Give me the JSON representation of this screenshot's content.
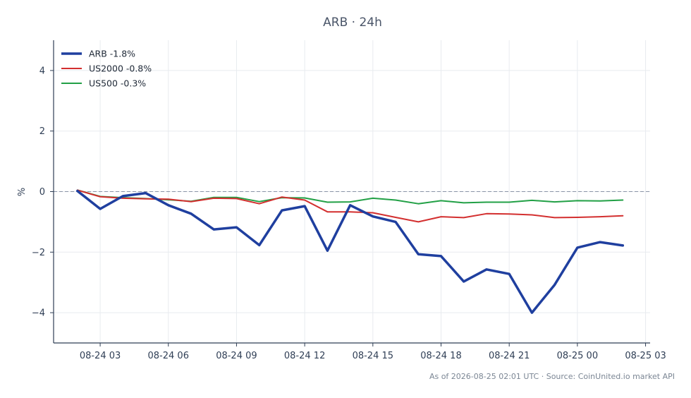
{
  "chart_data": {
    "type": "line",
    "title": "ARB · 24h",
    "xlabel": "",
    "ylabel": "%",
    "xlim": [
      0.95,
      27.2
    ],
    "ylim": [
      -5,
      5
    ],
    "x_ticks": [
      {
        "x": 3,
        "label": "08-24 03"
      },
      {
        "x": 6,
        "label": "08-24 06"
      },
      {
        "x": 9,
        "label": "08-24 09"
      },
      {
        "x": 12,
        "label": "08-24 12"
      },
      {
        "x": 15,
        "label": "08-24 15"
      },
      {
        "x": 18,
        "label": "08-24 18"
      },
      {
        "x": 21,
        "label": "08-24 21"
      },
      {
        "x": 24,
        "label": "08-25 00"
      },
      {
        "x": 27,
        "label": "08-25 03"
      }
    ],
    "y_ticks": [
      {
        "y": 4,
        "label": "4"
      },
      {
        "y": 2,
        "label": "2"
      },
      {
        "y": 0,
        "label": "0"
      },
      {
        "y": -2,
        "label": "−2"
      },
      {
        "y": -4,
        "label": "−4"
      }
    ],
    "grid": true,
    "legend_position": "top-left",
    "reference_line": 0,
    "x": [
      2,
      3,
      4,
      5,
      6,
      7,
      8,
      9,
      10,
      11,
      12,
      13,
      14,
      15,
      16,
      17,
      18,
      19,
      20,
      21,
      22,
      23,
      24,
      25,
      26
    ],
    "series": [
      {
        "name": "ARB -1.8%",
        "color": "#1f3f9f",
        "width": 3.5,
        "values": [
          0.02,
          -0.57,
          -0.15,
          -0.05,
          -0.45,
          -0.73,
          -1.25,
          -1.18,
          -1.77,
          -0.62,
          -0.48,
          -1.95,
          -0.45,
          -0.82,
          -1.0,
          -2.07,
          -2.13,
          -2.97,
          -2.57,
          -2.72,
          -4.0,
          -3.08,
          -1.85,
          -1.67,
          -1.78
        ]
      },
      {
        "name": "US2000 -0.8%",
        "color": "#d32f2f",
        "width": 2,
        "values": [
          0.05,
          -0.17,
          -0.22,
          -0.24,
          -0.25,
          -0.33,
          -0.22,
          -0.23,
          -0.4,
          -0.18,
          -0.28,
          -0.67,
          -0.67,
          -0.7,
          -0.85,
          -1.0,
          -0.83,
          -0.86,
          -0.73,
          -0.74,
          -0.77,
          -0.86,
          -0.85,
          -0.83,
          -0.8
        ]
      },
      {
        "name": "US500 -0.3%",
        "color": "#22a046",
        "width": 2,
        "values": [
          0.05,
          -0.16,
          -0.2,
          -0.23,
          -0.27,
          -0.32,
          -0.19,
          -0.19,
          -0.33,
          -0.2,
          -0.21,
          -0.35,
          -0.34,
          -0.22,
          -0.28,
          -0.4,
          -0.3,
          -0.37,
          -0.35,
          -0.35,
          -0.29,
          -0.34,
          -0.3,
          -0.31,
          -0.28
        ]
      }
    ],
    "footer": "As of 2026-08-25 02:01 UTC · Source: CoinUnited.io market API"
  }
}
